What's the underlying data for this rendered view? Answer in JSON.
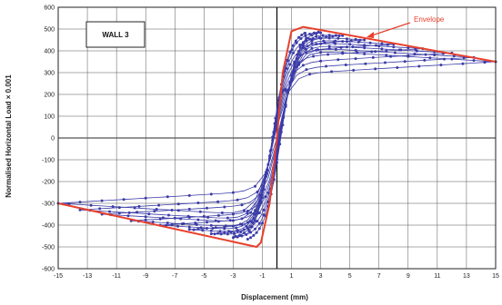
{
  "chart_data": {
    "type": "line",
    "title": "",
    "xlabel": "Displacement (mm)",
    "ylabel": "Normalised Horizontal Load × 0.001",
    "xlim": [
      -15,
      15
    ],
    "ylim": [
      -600,
      600
    ],
    "x_ticks": [
      "-15",
      "-13",
      "-11",
      "-9",
      "-7",
      "-5",
      "-3",
      "-1",
      "1",
      "3",
      "5",
      "7",
      "9",
      "11",
      "13",
      "15"
    ],
    "y_ticks": [
      "600",
      "500",
      "400",
      "300",
      "200",
      "100",
      "0",
      "-100",
      "-200",
      "-300",
      "-400",
      "-500",
      "-600"
    ],
    "grid": true,
    "legend_box": "WALL 3",
    "annotation": "Envelope",
    "colors": {
      "hysteresis": "#3b3ba8",
      "envelope": "#e8402c",
      "grid": "#555555"
    },
    "series": [
      {
        "name": "Envelope",
        "x": [
          -15,
          -1.4,
          -1.1,
          -0.5,
          0,
          0.4,
          1.0,
          1.8,
          15
        ],
        "y": [
          -300,
          -500,
          -480,
          -300,
          0,
          300,
          490,
          510,
          350
        ]
      },
      {
        "name": "",
        "loops": [
          {
            "dmax": 15,
            "fmax": 350,
            "dmin": -15,
            "fmin": -300
          },
          {
            "dmax": 13.5,
            "fmax": 370,
            "dmin": -13.5,
            "fmin": -330
          },
          {
            "dmax": 12,
            "fmax": 390,
            "dmin": -12,
            "fmin": -350
          },
          {
            "dmax": 10,
            "fmax": 410,
            "dmin": -10,
            "fmin": -380
          },
          {
            "dmax": 8,
            "fmax": 430,
            "dmin": -8,
            "fmin": -400
          },
          {
            "dmax": 6,
            "fmax": 450,
            "dmin": -6,
            "fmin": -420
          },
          {
            "dmax": 4.5,
            "fmax": 470,
            "dmin": -4.5,
            "fmin": -440
          },
          {
            "dmax": 3,
            "fmax": 490,
            "dmin": -3,
            "fmin": -460
          },
          {
            "dmax": 2,
            "fmax": 500,
            "dmin": -2,
            "fmin": -480
          }
        ]
      }
    ]
  }
}
